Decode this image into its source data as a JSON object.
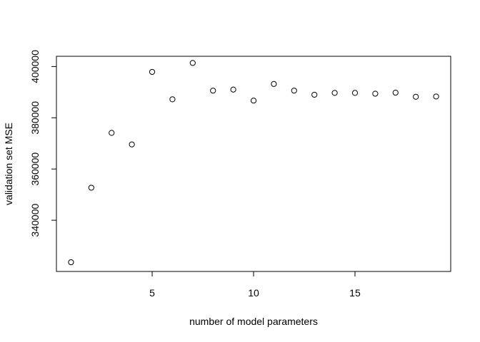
{
  "chart_data": {
    "type": "scatter",
    "title": "",
    "xlabel": "number of model parameters",
    "ylabel": "validation set MSE",
    "xlim": [
      0.28,
      19.72
    ],
    "ylim": [
      320000,
      404000
    ],
    "x_ticks": [
      5,
      10,
      15
    ],
    "y_ticks": [
      340000,
      360000,
      380000,
      400000
    ],
    "x_tick_labels": [
      "5",
      "10",
      "15"
    ],
    "y_tick_labels": [
      "340000",
      "360000",
      "380000",
      "400000"
    ],
    "grid": false,
    "legend": "none",
    "marker": "open-circle",
    "colors": {
      "marker": "#000000",
      "axis": "#000000",
      "background": "#ffffff"
    },
    "x": [
      1,
      2,
      3,
      4,
      5,
      6,
      7,
      8,
      9,
      10,
      11,
      12,
      13,
      14,
      15,
      16,
      17,
      18,
      19
    ],
    "y": [
      323600,
      352700,
      374100,
      369600,
      397900,
      387200,
      401400,
      390600,
      391000,
      386700,
      393200,
      390600,
      389000,
      389700,
      389700,
      389400,
      389800,
      388200,
      388300
    ]
  }
}
